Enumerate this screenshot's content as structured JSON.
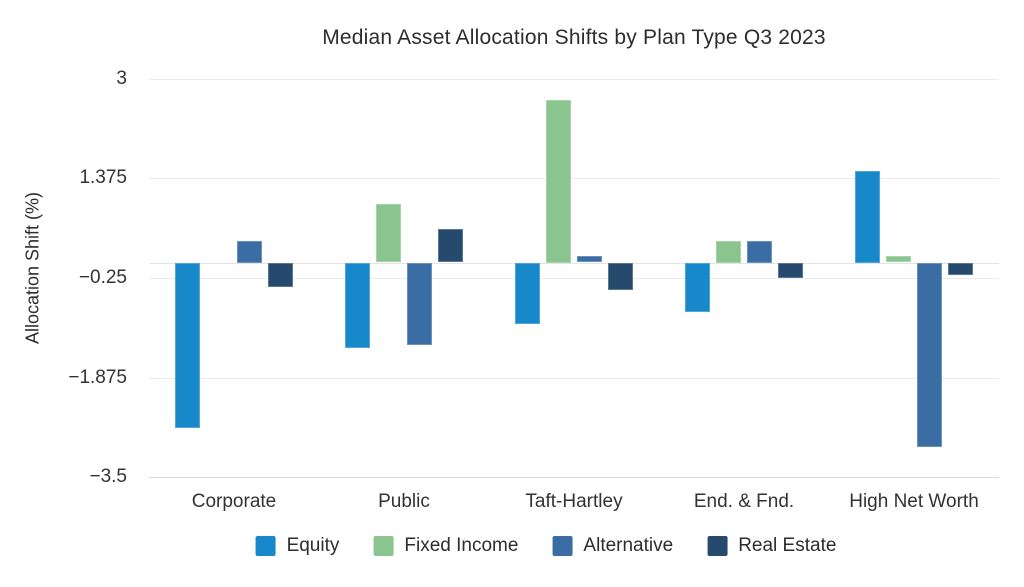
{
  "chart_data": {
    "type": "bar",
    "title": "Median Asset Allocation Shifts by Plan Type Q3 2023",
    "xlabel": "",
    "ylabel": "Allocation Shift (%)",
    "categories": [
      "Corporate",
      "Public",
      "Taft-Hartley",
      "End. & Fnd.",
      "High Net Worth"
    ],
    "series": [
      {
        "name": "Equity",
        "color": "#1789cb",
        "values": [
          -2.7,
          -1.4,
          -1.0,
          -0.8,
          1.5
        ]
      },
      {
        "name": "Fixed Income",
        "color": "#8ac58f",
        "values": [
          0,
          0.95,
          2.65,
          0.35,
          0.1
        ]
      },
      {
        "name": "Alternative",
        "color": "#3b6da5",
        "values": [
          0.35,
          -1.35,
          0.1,
          0.35,
          -3.0
        ]
      },
      {
        "name": "Real Estate",
        "color": "#254a6e",
        "values": [
          -0.4,
          0.55,
          -0.45,
          -0.25,
          -0.2
        ]
      }
    ],
    "yticks": [
      3,
      1.375,
      -0.25,
      -1.875,
      -3.5
    ],
    "ytick_labels": [
      "3",
      "1.375",
      "−0.25",
      "−1.875",
      "−3.5"
    ],
    "ylim": [
      -3.5,
      3.2
    ],
    "grid": true,
    "zeroline": true,
    "legend_position": "bottom-center"
  },
  "colors": {
    "background": "#ffffff",
    "grid": "#ebebeb",
    "axis_line": "#d8d8d8",
    "zero_line": "#e4e4e4",
    "title_text": "#2d2d2d",
    "tick_text": "#333333"
  }
}
